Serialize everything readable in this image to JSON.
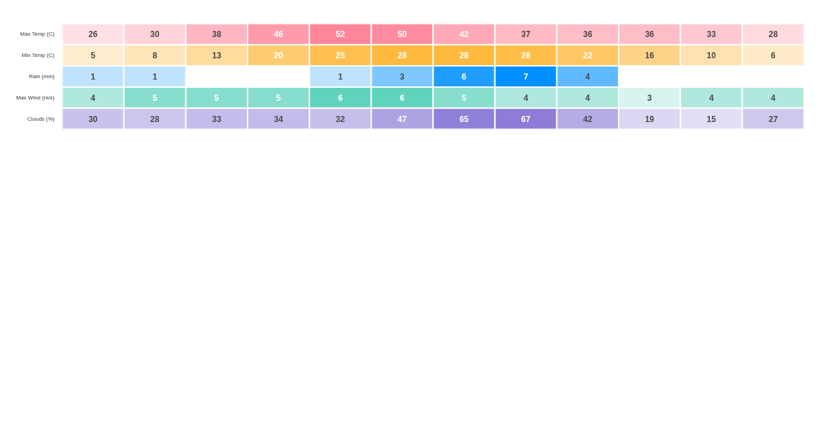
{
  "chart_data": {
    "type": "heatmap",
    "categories": [
      null,
      null,
      null,
      null,
      null,
      null,
      null,
      null,
      null,
      null,
      null,
      null
    ],
    "y_categories": [
      "Max Temp (C)",
      "Min Temp (C)",
      "Rain (mm)",
      "Max Wind (m/s)",
      "Clouds (%)"
    ],
    "cells": [
      [
        26,
        30,
        38,
        46,
        52,
        50,
        42,
        37,
        36,
        36,
        33,
        28
      ],
      [
        5,
        8,
        13,
        20,
        25,
        28,
        28,
        26,
        22,
        16,
        10,
        6
      ],
      [
        1,
        1,
        null,
        null,
        1,
        3,
        6,
        7,
        4,
        null,
        null,
        null
      ],
      [
        4,
        5,
        5,
        5,
        6,
        6,
        5,
        4,
        4,
        3,
        4,
        4
      ],
      [
        30,
        28,
        33,
        34,
        32,
        47,
        65,
        67,
        42,
        19,
        15,
        27
      ]
    ],
    "colors": [
      "#ff8598",
      "#ffb93d",
      "#0090ff",
      "#5fd3bb",
      "#8e7cd8"
    ],
    "data_labels": true,
    "tick_labels": "y"
  }
}
